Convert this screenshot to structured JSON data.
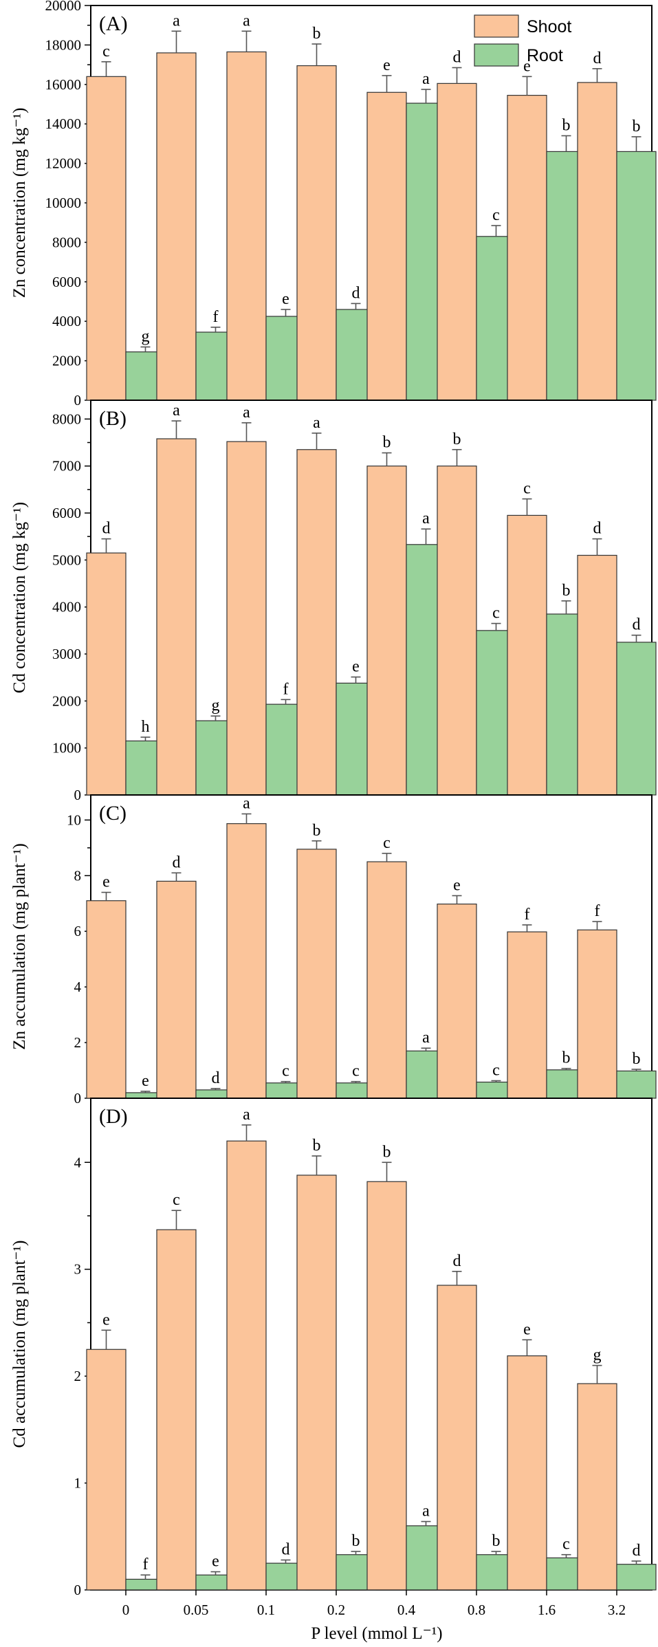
{
  "colors": {
    "shoot_fill": "#fbc49a",
    "root_fill": "#98d29a",
    "bar_stroke": "#333333"
  },
  "legend": [
    "Shoot",
    "Root"
  ],
  "x_categories": [
    "0",
    "0.05",
    "0.1",
    "0.2",
    "0.4",
    "0.8",
    "1.6",
    "3.2"
  ],
  "x_label": "P level (mmol L⁻¹)",
  "chart_data": [
    {
      "type": "bar",
      "panel": "(A)",
      "ylabel": "Zn concentration (mg kg⁻¹)",
      "ylim": [
        0,
        20000
      ],
      "yticks": [
        0,
        2000,
        4000,
        6000,
        8000,
        10000,
        12000,
        14000,
        16000,
        18000,
        20000
      ],
      "categories": [
        "0",
        "0.05",
        "0.1",
        "0.2",
        "0.4",
        "0.8",
        "1.6",
        "3.2"
      ],
      "series": [
        {
          "name": "Shoot",
          "values": [
            16400,
            17600,
            17650,
            16950,
            15600,
            16050,
            15450,
            16100
          ],
          "errors": [
            750,
            1100,
            1050,
            1100,
            850,
            800,
            950,
            700
          ],
          "labels": [
            "c",
            "a",
            "a",
            "b",
            "e",
            "d",
            "e",
            "d"
          ]
        },
        {
          "name": "Root",
          "values": [
            2450,
            3450,
            4250,
            4600,
            15050,
            8300,
            12600,
            12600
          ],
          "errors": [
            250,
            250,
            350,
            300,
            700,
            550,
            800,
            750
          ],
          "labels": [
            "g",
            "f",
            "e",
            "d",
            "a",
            "c",
            "b",
            "b"
          ]
        }
      ]
    },
    {
      "type": "bar",
      "panel": "(B)",
      "ylabel": "Cd concentration (mg kg⁻¹)",
      "ylim": [
        0,
        8400
      ],
      "yticks": [
        0,
        1000,
        2000,
        3000,
        4000,
        5000,
        6000,
        7000,
        8000
      ],
      "categories": [
        "0",
        "0.05",
        "0.1",
        "0.2",
        "0.4",
        "0.8",
        "1.6",
        "3.2"
      ],
      "series": [
        {
          "name": "Shoot",
          "values": [
            5150,
            7580,
            7520,
            7350,
            7000,
            7000,
            5950,
            5100
          ],
          "errors": [
            300,
            380,
            400,
            350,
            280,
            350,
            350,
            350
          ],
          "labels": [
            "d",
            "a",
            "a",
            "a",
            "b",
            "b",
            "c",
            "d"
          ]
        },
        {
          "name": "Root",
          "values": [
            1150,
            1580,
            1930,
            2380,
            5330,
            3500,
            3850,
            3250
          ],
          "errors": [
            80,
            100,
            100,
            130,
            330,
            150,
            280,
            150
          ],
          "labels": [
            "h",
            "g",
            "f",
            "e",
            "a",
            "c",
            "b",
            "d"
          ]
        }
      ]
    },
    {
      "type": "bar",
      "panel": "(C)",
      "ylabel": "Zn accumulation (mg plant⁻¹)",
      "ylim": [
        0,
        10.9
      ],
      "yticks": [
        0,
        2,
        4,
        6,
        8,
        10
      ],
      "categories": [
        "0",
        "0.05",
        "0.1",
        "0.2",
        "0.4",
        "0.8",
        "1.6",
        "3.2"
      ],
      "series": [
        {
          "name": "Shoot",
          "values": [
            7.1,
            7.8,
            9.87,
            8.95,
            8.5,
            6.98,
            5.98,
            6.05
          ],
          "errors": [
            0.3,
            0.3,
            0.35,
            0.3,
            0.3,
            0.3,
            0.25,
            0.3
          ],
          "labels": [
            "e",
            "d",
            "a",
            "b",
            "c",
            "e",
            "f",
            "f"
          ]
        },
        {
          "name": "Root",
          "values": [
            0.2,
            0.3,
            0.55,
            0.55,
            1.7,
            0.58,
            1.02,
            0.98
          ],
          "errors": [
            0.05,
            0.05,
            0.05,
            0.05,
            0.1,
            0.05,
            0.05,
            0.06
          ],
          "labels": [
            "e",
            "d",
            "c",
            "c",
            "a",
            "c",
            "b",
            "b"
          ]
        }
      ]
    },
    {
      "type": "bar",
      "panel": "(D)",
      "ylabel": "Cd accumulation (mg plant⁻¹)",
      "ylim": [
        0,
        4.6
      ],
      "yticks": [
        0,
        1,
        2,
        3,
        4
      ],
      "categories": [
        "0",
        "0.05",
        "0.1",
        "0.2",
        "0.4",
        "0.8",
        "1.6",
        "3.2"
      ],
      "series": [
        {
          "name": "Shoot",
          "values": [
            2.25,
            3.37,
            4.2,
            3.88,
            3.82,
            2.85,
            2.19,
            1.93
          ],
          "errors": [
            0.18,
            0.18,
            0.15,
            0.18,
            0.18,
            0.13,
            0.15,
            0.17
          ],
          "labels": [
            "e",
            "c",
            "a",
            "b",
            "b",
            "d",
            "e",
            "g"
          ]
        },
        {
          "name": "Root",
          "values": [
            0.1,
            0.14,
            0.25,
            0.33,
            0.6,
            0.33,
            0.3,
            0.24
          ],
          "errors": [
            0.04,
            0.03,
            0.03,
            0.03,
            0.04,
            0.03,
            0.03,
            0.03
          ],
          "labels": [
            "f",
            "e",
            "d",
            "b",
            "a",
            "b",
            "c",
            "d"
          ]
        }
      ]
    }
  ]
}
